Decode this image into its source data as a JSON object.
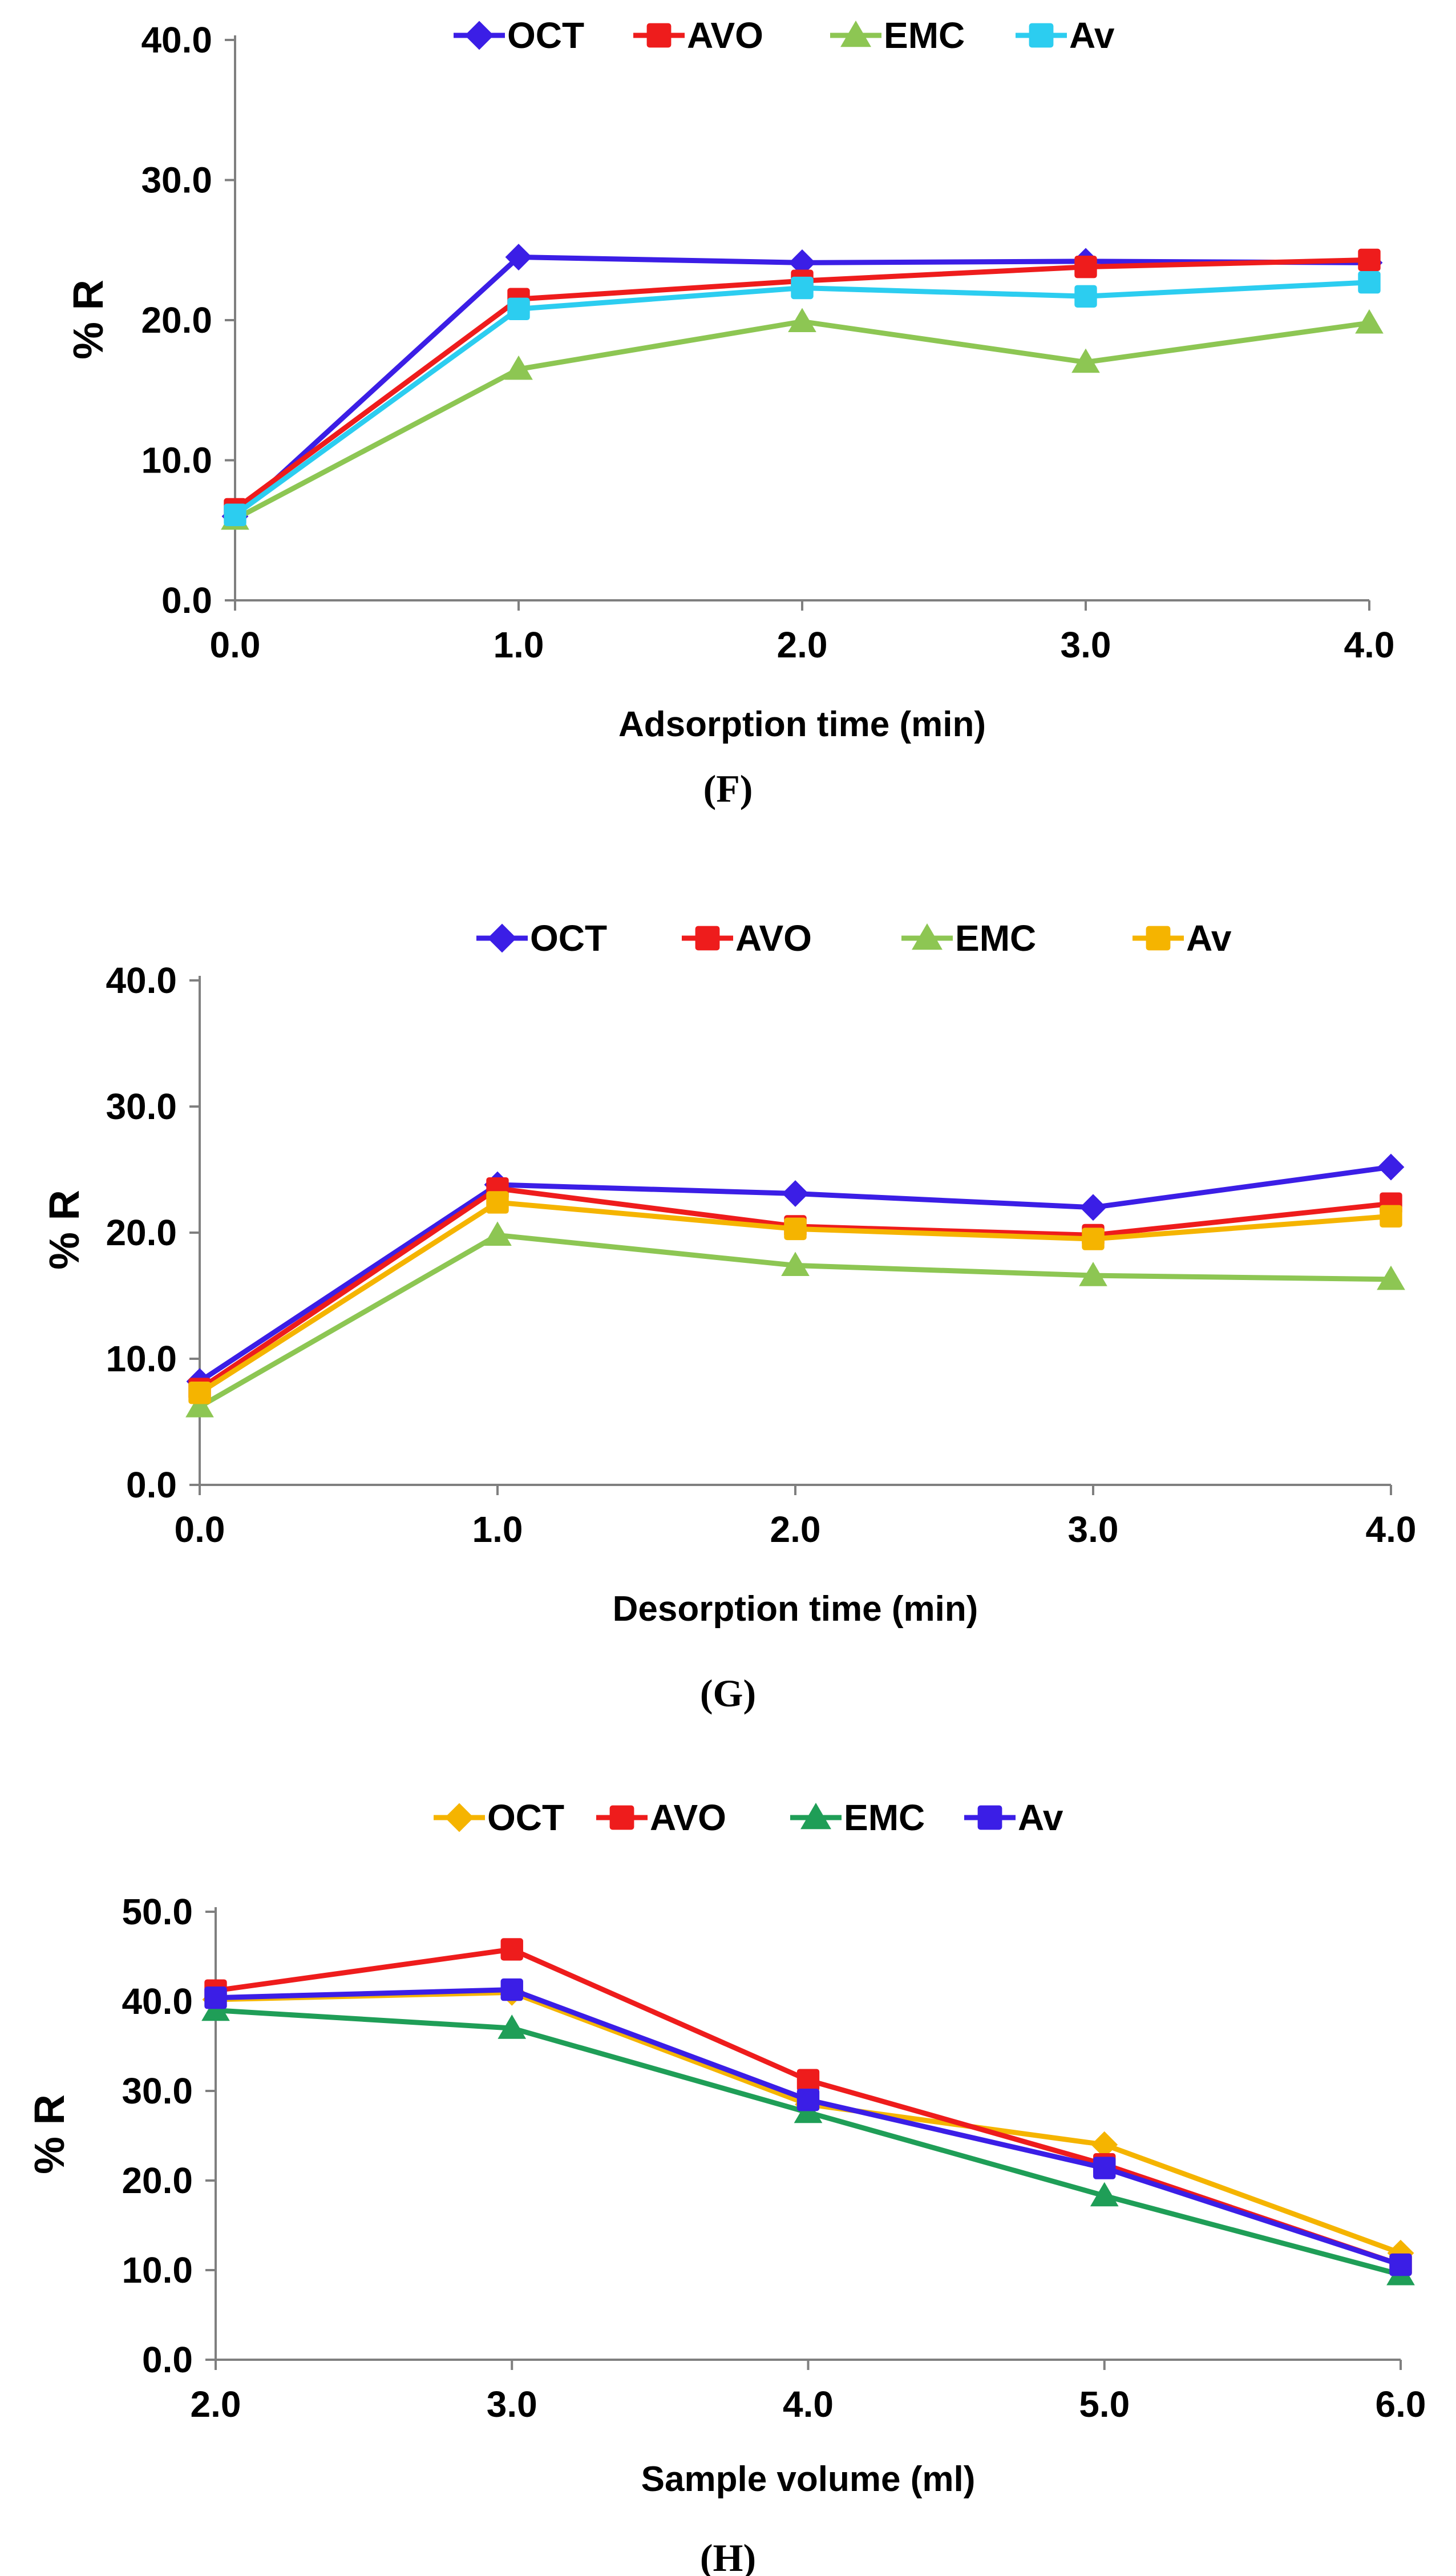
{
  "chart_data": [
    {
      "type": "line",
      "panel_label": "F",
      "xlabel": "Adsorption time (min)",
      "ylabel": "% R",
      "x": [
        "0.0",
        "1.0",
        "2.0",
        "3.0",
        "4.0"
      ],
      "ylim": [
        0,
        40
      ],
      "yticks": [
        "0.0",
        "10.0",
        "20.0",
        "30.0",
        "40.0"
      ],
      "grid": false,
      "legend_position": "top",
      "series": [
        {
          "name": "OCT",
          "color": "#3b1ee6",
          "marker": "diamond",
          "values": [
            6.0,
            24.5,
            24.1,
            24.2,
            24.1
          ]
        },
        {
          "name": "AVO",
          "color": "#ee1c1c",
          "marker": "square",
          "values": [
            6.5,
            21.5,
            22.8,
            23.8,
            24.3
          ]
        },
        {
          "name": "EMC",
          "color": "#8dc653",
          "marker": "triangle",
          "values": [
            5.8,
            16.5,
            19.9,
            17.0,
            19.8
          ]
        },
        {
          "name": "Av",
          "color": "#2ccdf0",
          "marker": "square",
          "values": [
            6.1,
            20.8,
            22.3,
            21.7,
            22.7
          ]
        }
      ]
    },
    {
      "type": "line",
      "panel_label": "G",
      "xlabel": "Desorption time (min)",
      "ylabel": "% R",
      "x": [
        "0.0",
        "1.0",
        "2.0",
        "3.0",
        "4.0"
      ],
      "ylim": [
        0,
        40
      ],
      "yticks": [
        "0.0",
        "10.0",
        "20.0",
        "30.0",
        "40.0"
      ],
      "grid": false,
      "legend_position": "top",
      "series": [
        {
          "name": "OCT",
          "color": "#3b1ee6",
          "marker": "diamond",
          "values": [
            8.2,
            23.8,
            23.1,
            22.0,
            25.2
          ]
        },
        {
          "name": "AVO",
          "color": "#ee1c1c",
          "marker": "square",
          "values": [
            7.6,
            23.5,
            20.5,
            19.8,
            22.3
          ]
        },
        {
          "name": "EMC",
          "color": "#8dc653",
          "marker": "triangle",
          "values": [
            6.2,
            19.8,
            17.4,
            16.6,
            16.3
          ]
        },
        {
          "name": "Av",
          "color": "#f5b400",
          "marker": "square",
          "values": [
            7.3,
            22.4,
            20.3,
            19.5,
            21.3
          ]
        }
      ]
    },
    {
      "type": "line",
      "panel_label": "H",
      "xlabel": "Sample volume (ml)",
      "ylabel": "% R",
      "x": [
        "2.0",
        "3.0",
        "4.0",
        "5.0",
        "6.0"
      ],
      "ylim": [
        0,
        50
      ],
      "yticks": [
        "0.0",
        "10.0",
        "20.0",
        "30.0",
        "40.0",
        "50.0"
      ],
      "grid": false,
      "legend_position": "top",
      "series": [
        {
          "name": "OCT",
          "color": "#f5b400",
          "marker": "diamond",
          "values": [
            40.2,
            41.0,
            28.5,
            24.0,
            11.9
          ]
        },
        {
          "name": "AVO",
          "color": "#ee1c1c",
          "marker": "square",
          "values": [
            41.2,
            45.8,
            31.2,
            21.8,
            10.6
          ]
        },
        {
          "name": "EMC",
          "color": "#1f9e57",
          "marker": "triangle",
          "values": [
            39.0,
            37.0,
            27.6,
            18.3,
            9.5
          ]
        },
        {
          "name": "Av",
          "color": "#3b1ee6",
          "marker": "square",
          "values": [
            40.4,
            41.3,
            29.0,
            21.4,
            10.6
          ]
        }
      ]
    }
  ]
}
